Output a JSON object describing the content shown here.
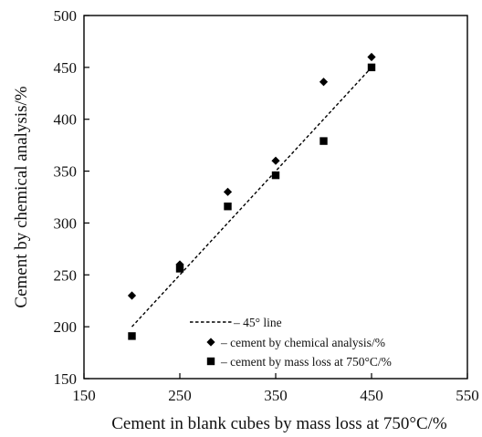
{
  "chart_data": {
    "type": "scatter",
    "xlabel": "Cement in blank cubes by mass loss at 750°C/%",
    "ylabel": "Cement by chemical analysis/%",
    "xlim": [
      150,
      550
    ],
    "ylim": [
      150,
      500
    ],
    "x_ticks": [
      150,
      250,
      350,
      450,
      550
    ],
    "y_ticks": [
      150,
      200,
      250,
      300,
      350,
      400,
      450,
      500
    ],
    "grid": false,
    "legend_position": "bottom-right",
    "series": [
      {
        "name": "– 45° line",
        "kind": "line",
        "style": "dashed",
        "color": "#000000",
        "x": [
          200,
          450
        ],
        "y": [
          200,
          450
        ]
      },
      {
        "name": "– cement by chemical analysis/%",
        "kind": "scatter",
        "marker": "diamond",
        "color": "#000000",
        "x": [
          200,
          250,
          300,
          350,
          400,
          450
        ],
        "y": [
          230,
          260,
          330,
          360,
          436,
          460
        ]
      },
      {
        "name": "– cement by mass loss at 750°C/%",
        "kind": "scatter",
        "marker": "square",
        "color": "#000000",
        "x": [
          200,
          250,
          300,
          350,
          400,
          450
        ],
        "y": [
          191,
          256,
          316,
          346,
          379,
          450
        ]
      }
    ]
  }
}
